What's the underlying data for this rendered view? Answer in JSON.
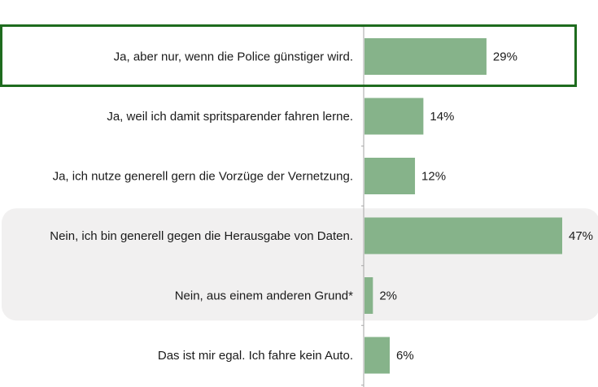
{
  "chart_data": {
    "type": "bar",
    "orientation": "horizontal",
    "categories": [
      "Ja, aber nur, wenn die Police günstiger wird.",
      "Ja, weil ich damit spritsparender fahren lerne.",
      "Ja, ich nutze generell gern die Vorzüge der Vernetzung.",
      "Nein, ich bin generell gegen die Herausgabe von Daten.",
      "Nein, aus einem anderen Grund*",
      "Das ist mir egal. Ich fahre kein Auto."
    ],
    "values": [
      29,
      14,
      12,
      47,
      2,
      6
    ],
    "value_labels": [
      "29%",
      "14%",
      "12%",
      "47%",
      "2%",
      "6%"
    ],
    "unit": "%",
    "xlim": [
      0,
      47
    ],
    "grid": false,
    "bar_color": "#86b38a",
    "highlight_color": "#1e6b1e",
    "shade_color": "#f1f0f0",
    "highlighted_category_index": 0,
    "shaded_category_indices": [
      3,
      4
    ]
  }
}
